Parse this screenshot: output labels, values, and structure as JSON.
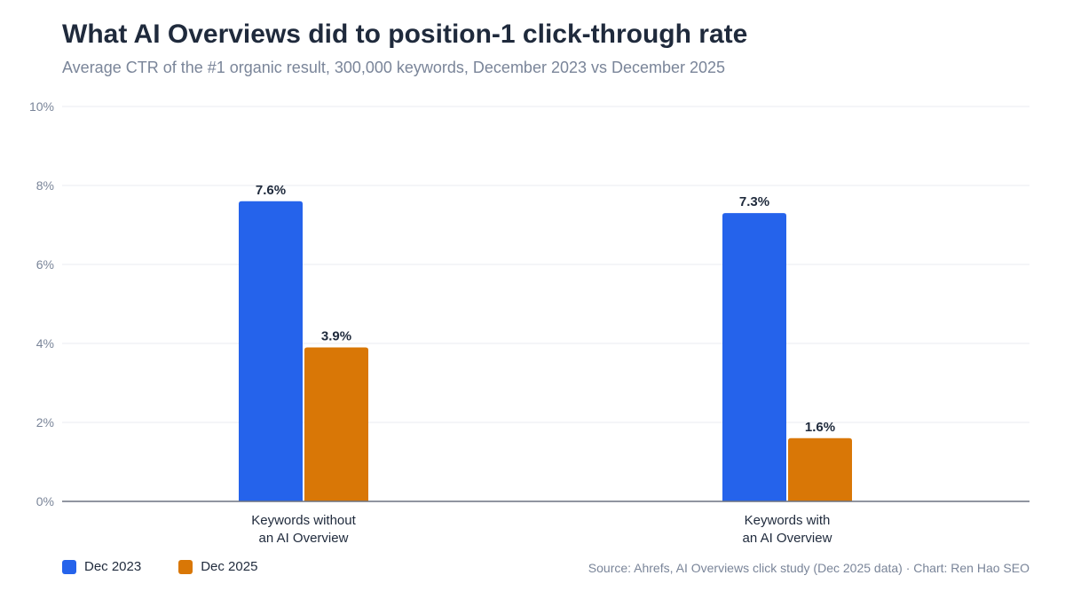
{
  "title": "What AI Overviews did to position-1 click-through rate",
  "subtitle": "Average CTR of the #1 organic result, 300,000 keywords, December 2023 vs December 2025",
  "source": "Source: Ahrefs, AI Overviews click study (Dec 2025 data) · Chart: Ren Hao SEO",
  "colors": {
    "dec_2023": "#2563eb",
    "dec_2025": "#d97706"
  },
  "chart_data": {
    "type": "bar",
    "categories": [
      [
        "Keywords without",
        "an AI Overview"
      ],
      [
        "Keywords with",
        "an AI Overview"
      ]
    ],
    "series": [
      {
        "name": "Dec 2023",
        "values": [
          7.6,
          7.3
        ],
        "labels": [
          "7.6%",
          "7.3%"
        ]
      },
      {
        "name": "Dec 2025",
        "values": [
          3.9,
          1.6
        ],
        "labels": [
          "3.9%",
          "1.6%"
        ]
      }
    ],
    "ylim": [
      0,
      10
    ],
    "yticks": [
      "0%",
      "2%",
      "4%",
      "6%",
      "8%",
      "10%"
    ],
    "ytick_values": [
      0,
      2,
      4,
      6,
      8,
      10
    ],
    "grid": true,
    "legend": "bottom-left",
    "xlabel": "",
    "ylabel": ""
  }
}
